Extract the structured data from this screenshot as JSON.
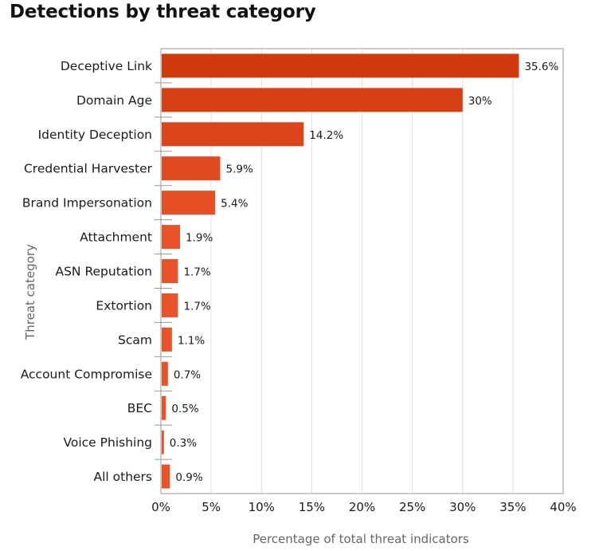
{
  "chart_data": {
    "type": "bar",
    "orientation": "horizontal",
    "title": "Detections by threat category",
    "xlabel": "Percentage of total threat indicators",
    "ylabel": "Threat category",
    "categories": [
      "Deceptive Link",
      "Domain Age",
      "Identity Deception",
      "Credential Harvester",
      "Brand Impersonation",
      "Attachment",
      "ASN Reputation",
      "Extortion",
      "Scam",
      "Account Compromise",
      "BEC",
      "Voice Phishing",
      "All others"
    ],
    "values": [
      35.6,
      30,
      14.2,
      5.9,
      5.4,
      1.9,
      1.7,
      1.7,
      1.1,
      0.7,
      0.5,
      0.3,
      0.9
    ],
    "value_labels": [
      "35.6%",
      "30%",
      "14.2%",
      "5.9%",
      "5.4%",
      "1.9%",
      "1.7%",
      "1.7%",
      "1.1%",
      "0.7%",
      "0.5%",
      "0.3%",
      "0.9%"
    ],
    "xlim": [
      0,
      40
    ],
    "xticks": [
      0,
      5,
      10,
      15,
      20,
      25,
      30,
      35,
      40
    ],
    "xtick_labels": [
      "0%",
      "5%",
      "10%",
      "15%",
      "20%",
      "25%",
      "30%",
      "35%",
      "40%"
    ],
    "grid": "vertical",
    "legend": "none",
    "bar_colors": [
      "#d1390f",
      "#d73f15",
      "#dc451b",
      "#e14a21",
      "#e54f26",
      "#e8532a",
      "#e8532a",
      "#e8532a",
      "#e8532a",
      "#e8532a",
      "#e8532a",
      "#e8532a",
      "#e8532a"
    ]
  }
}
